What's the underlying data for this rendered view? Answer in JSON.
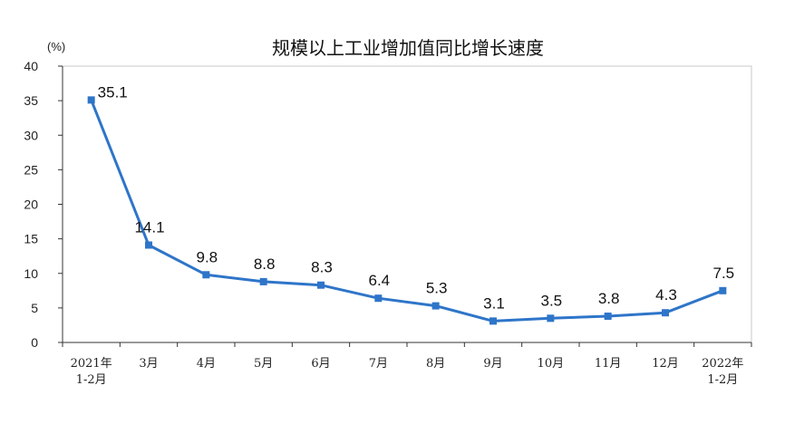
{
  "chart_data": {
    "type": "line",
    "title": "规模以上工业增加值同比增长速度",
    "unit_label": "(%)",
    "categories": [
      [
        "2021年",
        "1-2月"
      ],
      [
        "3月"
      ],
      [
        "4月"
      ],
      [
        "5月"
      ],
      [
        "6月"
      ],
      [
        "7月"
      ],
      [
        "8月"
      ],
      [
        "9月"
      ],
      [
        "10月"
      ],
      [
        "11月"
      ],
      [
        "12月"
      ],
      [
        "2022年",
        "1-2月"
      ]
    ],
    "values": [
      35.1,
      14.1,
      9.8,
      8.8,
      8.3,
      6.4,
      5.3,
      3.1,
      3.5,
      3.8,
      4.3,
      7.5
    ],
    "data_labels": [
      "35.1",
      "14.1",
      "9.8",
      "8.8",
      "8.3",
      "6.4",
      "5.3",
      "3.1",
      "3.5",
      "3.8",
      "4.3",
      "7.5"
    ],
    "ylim": [
      0,
      40
    ],
    "yticks": [
      0,
      5,
      10,
      15,
      20,
      25,
      30,
      35,
      40
    ],
    "grid": false,
    "line_color": "#2E75C9"
  }
}
